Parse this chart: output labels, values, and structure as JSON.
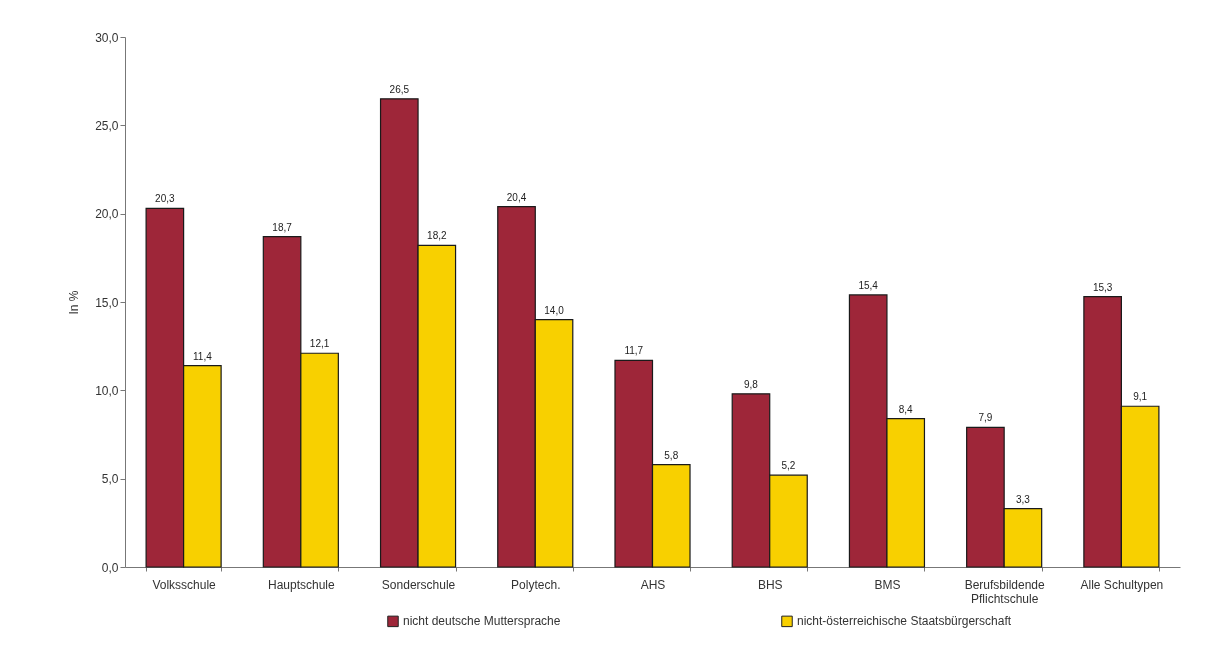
{
  "chart_data": {
    "type": "bar",
    "categories": [
      "Volksschule",
      "Hauptschule",
      "Sonderschule",
      "Polytech.",
      "AHS",
      "BHS",
      "BMS",
      "Berufsbildende Pflichtschule",
      "Alle Schultypen"
    ],
    "series": [
      {
        "name": "nicht deutsche Muttersprache",
        "color": "#9e2639",
        "values": [
          20.3,
          18.7,
          26.5,
          20.4,
          11.7,
          9.8,
          15.4,
          7.9,
          15.3
        ],
        "value_labels": [
          "20,3",
          "18,7",
          "26,5",
          "20,4",
          "11,7",
          "9,8",
          "15,4",
          "7,9",
          "15,3"
        ]
      },
      {
        "name": "nicht-österreichische Staatsbürgerschaft",
        "color": "#f8d000",
        "values": [
          11.4,
          12.1,
          18.2,
          14.0,
          5.8,
          5.2,
          8.4,
          3.3,
          9.1
        ],
        "value_labels": [
          "11,4",
          "12,1",
          "18,2",
          "14,0",
          "5,8",
          "5,2",
          "8,4",
          "3,3",
          "9,1"
        ]
      }
    ],
    "ylabel": "In %",
    "ylim": [
      0,
      30
    ],
    "yticks": [
      {
        "value": 0,
        "label": "0,0"
      },
      {
        "value": 5,
        "label": "5,0"
      },
      {
        "value": 10,
        "label": "10,0"
      },
      {
        "value": 15,
        "label": "15,0"
      },
      {
        "value": 20,
        "label": "20,0"
      },
      {
        "value": 25,
        "label": "25,0"
      },
      {
        "value": 30,
        "label": "30,0"
      }
    ],
    "grid": false,
    "legend": "bottom"
  }
}
